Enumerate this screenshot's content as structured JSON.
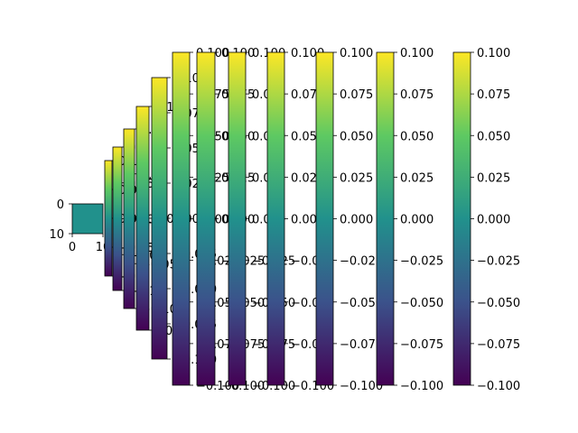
{
  "chart_data": [
    {
      "type": "heatmap",
      "title": "",
      "xlabel": "",
      "ylabel": "",
      "xlim": [
        0,
        10
      ],
      "ylim": [
        10,
        0
      ],
      "x_ticks": [
        "0",
        "10"
      ],
      "y_ticks": [
        "0",
        "10"
      ],
      "grid": false,
      "values": [
        [
          0.0
        ]
      ],
      "fill_color": "#21918c"
    },
    {
      "type": "colorbar",
      "count": 9,
      "colormap": "viridis",
      "range": [
        -0.1,
        0.1
      ],
      "colors": [
        "#440154",
        "#3b528b",
        "#21918c",
        "#5ec962",
        "#fde725"
      ],
      "tick_labels": [
        [
          "0.1",
          "0.05",
          "0.00",
          "−0.05",
          "−0.1"
        ],
        [
          "0.1",
          "0.05",
          "0.00",
          "−0.05",
          "−0.1"
        ],
        [
          "0.10",
          "0.05",
          "0.00",
          "−0.05",
          "−0.10"
        ],
        [
          "0.1",
          "0.0",
          "−0.1"
        ],
        [
          "0.100",
          "0.075",
          "0.050",
          "0.025",
          "0.000",
          "−0.025",
          "−0.050",
          "−0.075",
          "−0.100"
        ],
        [
          "0.100",
          "0.075",
          "0.050",
          "0.025",
          "0.000",
          "−0.025",
          "−0.050",
          "−0.075",
          "−0.100"
        ],
        [
          "0.100",
          "0.075",
          "0.050",
          "0.025",
          "0.000",
          "−0.025",
          "−0.050",
          "−0.075",
          "−0.100"
        ],
        [
          "0.100",
          "0.075",
          "0.050",
          "0.025",
          "0.000",
          "−0.025",
          "−0.050",
          "−0.075",
          "−0.100"
        ],
        [
          "0.100",
          "0.075",
          "0.050",
          "0.025",
          "0.000",
          "−0.025",
          "−0.050",
          "−0.075",
          "−0.100"
        ],
        [
          "0.100",
          "0.075",
          "0.050",
          "0.025",
          "0.000",
          "−0.025",
          "−0.050",
          "−0.075",
          "−0.100"
        ],
        [
          "0.100",
          "0.075",
          "0.050",
          "0.025",
          "0.000",
          "−0.025",
          "−0.050",
          "−0.075",
          "−0.100"
        ]
      ]
    }
  ]
}
